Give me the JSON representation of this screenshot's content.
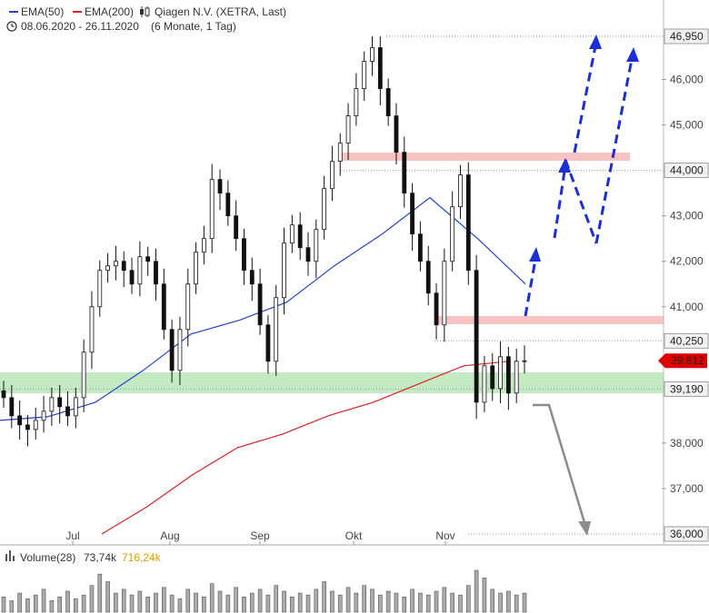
{
  "header": {
    "ema50_label": "EMA(50)",
    "ema200_label": "EMA(200)",
    "instrument": "Qiagen N.V. (XETRA, Last)",
    "range": "08.06.2020 - 26.11.2020",
    "range_note": "(6 Monate, 1 Tag)"
  },
  "colors": {
    "ema50": "#2244cc",
    "ema200": "#e02020",
    "candle": "#111111",
    "support_zone": "#b8e6b8",
    "resistance_zone": "#f7b8b8",
    "bull_arrow": "#1a2fd6",
    "bear_arrow": "#8c8c8c",
    "last_price": "#e00000"
  },
  "chart_data": {
    "type": "candlestick",
    "x_labels": [
      "Jul",
      "Aug",
      "Sep",
      "Okt",
      "Nov"
    ],
    "y_ticks": [
      37000,
      38000,
      41000,
      42000,
      43000,
      45000,
      46000
    ],
    "ylim": [
      35900,
      47200
    ],
    "levels": [
      {
        "value": 46950,
        "label": "46,950",
        "kind": "target"
      },
      {
        "value": 44000,
        "label": "44,000",
        "kind": "resistance"
      },
      {
        "value": 40250,
        "label": "40,250",
        "kind": "resistance"
      },
      {
        "value": 39190,
        "label": "39,190",
        "kind": "support"
      },
      {
        "value": 36000,
        "label": "36,000",
        "kind": "target"
      }
    ],
    "last_price": {
      "value": 39812,
      "label": "39,812"
    },
    "series": [
      {
        "name": "EMA(50)",
        "values": [
          38500,
          38580,
          38900,
          39600,
          40400,
          40700,
          41100,
          41900,
          42600,
          43400,
          42500,
          41500
        ]
      },
      {
        "name": "EMA(200)",
        "values": [
          36000,
          36600,
          37300,
          37900,
          38200,
          38600,
          38900,
          39300,
          39700,
          39800
        ]
      }
    ],
    "closes": [
      39000,
      38600,
      38400,
      38300,
      38500,
      38700,
      39000,
      38800,
      38600,
      39000,
      40000,
      41000,
      41800,
      41900,
      42000,
      41800,
      41500,
      42100,
      42000,
      41500,
      40500,
      39600,
      40500,
      41500,
      42200,
      42500,
      43800,
      43500,
      43000,
      42500,
      41800,
      41500,
      40600,
      39800,
      41200,
      42400,
      42800,
      42300,
      42000,
      42700,
      43600,
      44200,
      44600,
      45200,
      45800,
      46400,
      46700,
      45800,
      45200,
      44400,
      43500,
      42600,
      42000,
      41300,
      40600,
      42000,
      43200,
      43900,
      41800,
      38900,
      39700,
      39200,
      39900,
      39100,
      39800,
      39812
    ],
    "volume": {
      "label": "Volume(28)",
      "value1": "73,74k",
      "value2": "716,24k",
      "bars": [
        8,
        6,
        10,
        7,
        9,
        12,
        6,
        8,
        11,
        7,
        9,
        14,
        20,
        16,
        10,
        12,
        9,
        11,
        8,
        10,
        13,
        9,
        7,
        12,
        10,
        8,
        15,
        11,
        9,
        13,
        8,
        10,
        12,
        9,
        14,
        11,
        8,
        10,
        9,
        12,
        16,
        11,
        9,
        13,
        10,
        14,
        12,
        9,
        11,
        10,
        8,
        12,
        10,
        9,
        11,
        13,
        10,
        9,
        14,
        22,
        18,
        12,
        10,
        11,
        9,
        10
      ]
    }
  }
}
